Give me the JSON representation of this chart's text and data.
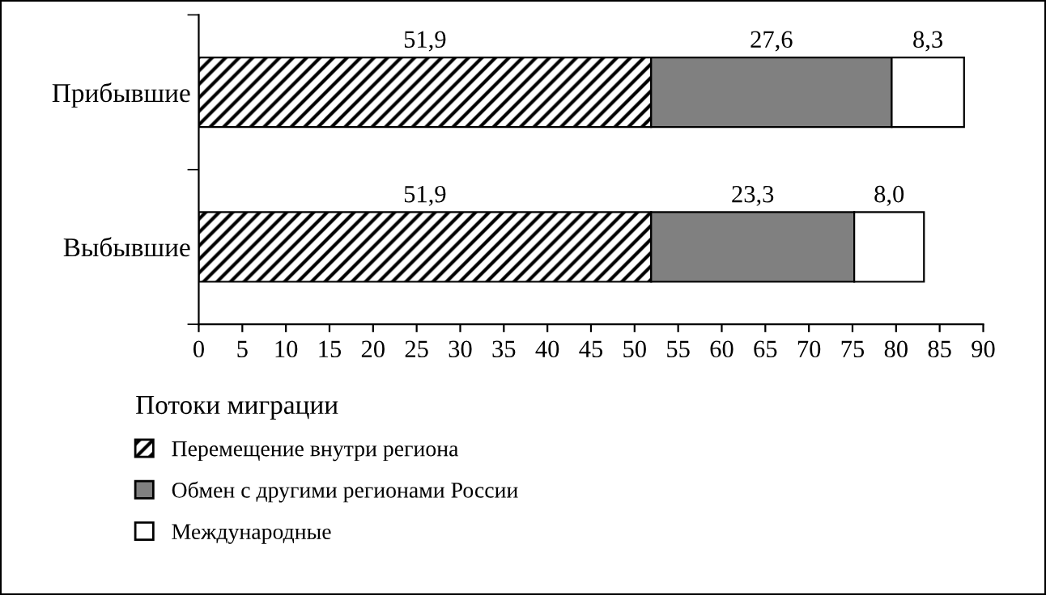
{
  "chart_data": {
    "type": "bar",
    "orientation": "horizontal",
    "stacked": true,
    "categories": [
      "Прибывшие",
      "Выбывшие"
    ],
    "series": [
      {
        "name": "Перемещение внутри региона",
        "color": "#000000",
        "values": [
          51.9,
          51.9
        ],
        "value_labels": [
          "51,9",
          "51,9"
        ]
      },
      {
        "name": "Обмен с другими регионами России",
        "color": "#808080",
        "values": [
          27.6,
          23.3
        ],
        "value_labels": [
          "27,6",
          "23,3"
        ]
      },
      {
        "name": "Международные",
        "color": "#ffffff",
        "values": [
          8.3,
          8.0
        ],
        "value_labels": [
          "8,3",
          "8,0"
        ]
      }
    ],
    "xlim": [
      0,
      90
    ],
    "xticks": [
      0,
      5,
      10,
      15,
      20,
      25,
      30,
      35,
      40,
      45,
      50,
      55,
      60,
      65,
      70,
      75,
      80,
      85,
      90
    ],
    "legend": "bottom",
    "legend_title": "Потоки миграции",
    "grid": false
  }
}
